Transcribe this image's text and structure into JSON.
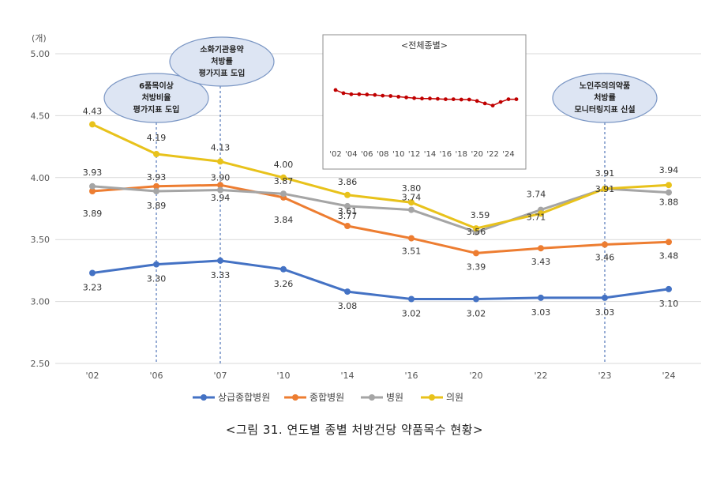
{
  "caption": "<그림 31. 연도별 종별 처방건당 약품목수 현황>",
  "chart_data": {
    "type": "line",
    "yunit": "(개)",
    "ylim": [
      2.5,
      5.0
    ],
    "yticks": [
      "2.50",
      "3.00",
      "3.50",
      "4.00",
      "4.50",
      "5.00"
    ],
    "categories": [
      "'02",
      "'06",
      "'07",
      "'10",
      "'14",
      "'16",
      "'20",
      "'22",
      "'23",
      "'24"
    ],
    "grid": true,
    "legend_position": "bottom",
    "series": [
      {
        "name": "상급종합병원",
        "color": "#4472C4",
        "values": [
          3.23,
          3.3,
          3.33,
          3.26,
          3.08,
          3.02,
          3.02,
          3.03,
          3.03,
          3.1
        ],
        "labels": [
          "3.23",
          "3.30",
          "3.33",
          "3.26",
          "3.08",
          "3.02",
          "3.02",
          "3.03",
          "3.03",
          "3.10"
        ]
      },
      {
        "name": "종합병원",
        "color": "#ED7D31",
        "values": [
          3.89,
          3.93,
          3.94,
          3.84,
          3.61,
          3.51,
          3.39,
          3.43,
          3.46,
          3.48
        ],
        "labels": [
          "3.89",
          "3.93",
          "3.94",
          "3.84",
          "3.61",
          "3.51",
          "3.39",
          "3.43",
          "3.46",
          "3.48"
        ]
      },
      {
        "name": "병원",
        "color": "#A5A5A5",
        "values": [
          3.93,
          3.89,
          3.9,
          3.87,
          3.77,
          3.74,
          3.56,
          3.74,
          3.91,
          3.88
        ],
        "labels": [
          "3.93",
          "3.89",
          "3.90",
          "3.87",
          "3.77",
          "3.74",
          "3.56",
          "3.74",
          "3.91",
          "3.88"
        ]
      },
      {
        "name": "의원",
        "color": "#E8C21B",
        "values": [
          4.43,
          4.19,
          4.13,
          4.0,
          3.86,
          3.8,
          3.59,
          3.71,
          3.91,
          3.94
        ],
        "labels": [
          "4.43",
          "4.19",
          "4.13",
          "4.00",
          "3.86",
          "3.80",
          "3.59",
          "3.71",
          "3.91",
          "3.94"
        ]
      }
    ],
    "annotations": [
      {
        "category_index": 1,
        "lines": [
          "6품목이상",
          "처방비율",
          "평가지표 도입"
        ]
      },
      {
        "category_index": 2,
        "lines": [
          "소화기관용약",
          "처방률",
          "평가지표 도입"
        ]
      },
      {
        "category_index": 8,
        "lines": [
          "노인주의의약품",
          "처방률",
          "모니터링지표 신설"
        ]
      }
    ],
    "inset": {
      "title": "<전체종별>",
      "type": "line",
      "color": "#C00000",
      "x_ticks": [
        "'02",
        "'04",
        "'06",
        "'08",
        "'10",
        "'12",
        "'14",
        "'16",
        "'18",
        "'20",
        "'22",
        "'24"
      ],
      "values": [
        4.02,
        3.93,
        3.9,
        3.9,
        3.89,
        3.88,
        3.86,
        3.85,
        3.83,
        3.81,
        3.79,
        3.78,
        3.78,
        3.77,
        3.76,
        3.76,
        3.75,
        3.75,
        3.71,
        3.64,
        3.58,
        3.68,
        3.76,
        3.76
      ],
      "ylim": [
        2.5,
        5.0
      ]
    }
  }
}
